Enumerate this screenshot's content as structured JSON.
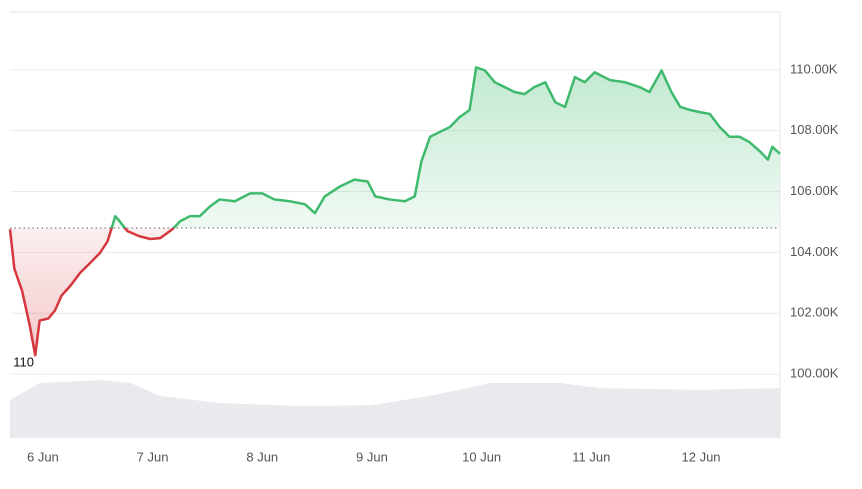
{
  "chart_data": {
    "type": "line",
    "annotation": "110",
    "baseline": 104800,
    "xlim": [
      5.7,
      12.72
    ],
    "xticks": [
      {
        "value": 6,
        "label": "6 Jun"
      },
      {
        "value": 7,
        "label": "7 Jun"
      },
      {
        "value": 8,
        "label": "8 Jun"
      },
      {
        "value": 9,
        "label": "9 Jun"
      },
      {
        "value": 10,
        "label": "10 Jun"
      },
      {
        "value": 11,
        "label": "11 Jun"
      },
      {
        "value": 12,
        "label": "12 Jun"
      }
    ],
    "ylim": [
      97900,
      111900
    ],
    "yticks": [
      {
        "value": 100000,
        "label": "100.00K"
      },
      {
        "value": 102000,
        "label": "102.00K"
      },
      {
        "value": 104000,
        "label": "104.00K"
      },
      {
        "value": 106000,
        "label": "106.00K"
      },
      {
        "value": 108000,
        "label": "108.00K"
      },
      {
        "value": 110000,
        "label": "110.00K"
      }
    ],
    "y2lim": [
      0,
      100
    ],
    "grid": true,
    "series": [
      {
        "color": "#3fba6d",
        "color_below": "#d6363d",
        "x": [
          5.7,
          5.74,
          5.81,
          5.88,
          5.93,
          5.97,
          6.05,
          6.11,
          6.17,
          6.25,
          6.34,
          6.43,
          6.52,
          6.59,
          6.66,
          6.7,
          6.77,
          6.88,
          6.98,
          7.07,
          7.18,
          7.25,
          7.34,
          7.43,
          7.52,
          7.61,
          7.75,
          7.89,
          8.0,
          8.11,
          8.25,
          8.39,
          8.48,
          8.57,
          8.71,
          8.84,
          8.96,
          9.03,
          9.16,
          9.3,
          9.39,
          9.45,
          9.53,
          9.62,
          9.71,
          9.8,
          9.89,
          9.95,
          10.03,
          10.12,
          10.21,
          10.3,
          10.39,
          10.48,
          10.58,
          10.67,
          10.76,
          10.85,
          10.94,
          11.03,
          11.17,
          11.31,
          11.44,
          11.53,
          11.64,
          11.73,
          11.81,
          11.9,
          11.99,
          12.08,
          12.17,
          12.26,
          12.35,
          12.44,
          12.54,
          12.61,
          12.65,
          12.72
        ],
        "values": [
          104760,
          103460,
          102740,
          101600,
          100620,
          101760,
          101830,
          102090,
          102580,
          102900,
          103330,
          103650,
          103980,
          104370,
          105190,
          105020,
          104700,
          104530,
          104440,
          104470,
          104760,
          105020,
          105190,
          105190,
          105500,
          105740,
          105680,
          105940,
          105940,
          105740,
          105680,
          105580,
          105290,
          105840,
          106170,
          106390,
          106330,
          105840,
          105740,
          105680,
          105840,
          106980,
          107800,
          107960,
          108120,
          108450,
          108680,
          110080,
          109980,
          109590,
          109430,
          109270,
          109200,
          109430,
          109590,
          108940,
          108780,
          109760,
          109590,
          109920,
          109660,
          109590,
          109430,
          109270,
          109980,
          109270,
          108780,
          108680,
          108610,
          108550,
          108120,
          107800,
          107800,
          107630,
          107310,
          107050,
          107470,
          107240
        ]
      },
      {
        "axis": "y2",
        "color": "#e9eaee",
        "x": [
          5.7,
          5.97,
          6.52,
          6.8,
          7.07,
          7.61,
          8.35,
          8.99,
          9.53,
          10.08,
          10.72,
          11.08,
          11.99,
          12.72
        ],
        "values": [
          8.9,
          12.9,
          13.6,
          12.9,
          9.9,
          8.2,
          7.5,
          7.7,
          9.9,
          12.9,
          12.9,
          11.7,
          11.3,
          11.7
        ]
      }
    ]
  }
}
